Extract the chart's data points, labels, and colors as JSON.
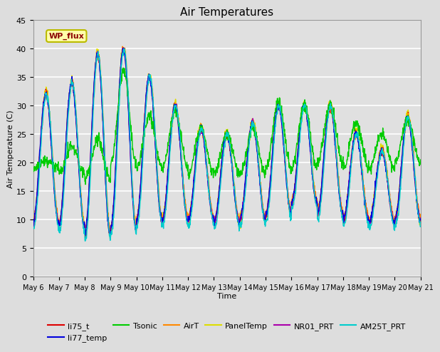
{
  "title": "Air Temperatures",
  "xlabel": "Time",
  "ylabel": "Air Temperature (C)",
  "ylim": [
    0,
    45
  ],
  "yticks": [
    0,
    5,
    10,
    15,
    20,
    25,
    30,
    35,
    40,
    45
  ],
  "x_labels": [
    "May 6",
    "May 7",
    "May 8",
    "May 9",
    "May 10",
    "May 11",
    "May 12",
    "May 13",
    "May 14",
    "May 15",
    "May 16",
    "May 17",
    "May 18",
    "May 19",
    "May 20",
    "May 21"
  ],
  "legend_entries": [
    {
      "label": "li75_t",
      "color": "#dd0000"
    },
    {
      "label": "li77_temp",
      "color": "#0000dd"
    },
    {
      "label": "Tsonic",
      "color": "#00cc00"
    },
    {
      "label": "AirT",
      "color": "#ff8800"
    },
    {
      "label": "PanelTemp",
      "color": "#dddd00"
    },
    {
      "label": "NR01_PRT",
      "color": "#aa00aa"
    },
    {
      "label": "AM25T_PRT",
      "color": "#00cccc"
    }
  ],
  "annotation_text": "WP_flux",
  "fig_bg": "#dddddd",
  "axes_bg": "#e0e0e0",
  "grid_color": "white",
  "num_days": 15,
  "pts_per_day": 96
}
